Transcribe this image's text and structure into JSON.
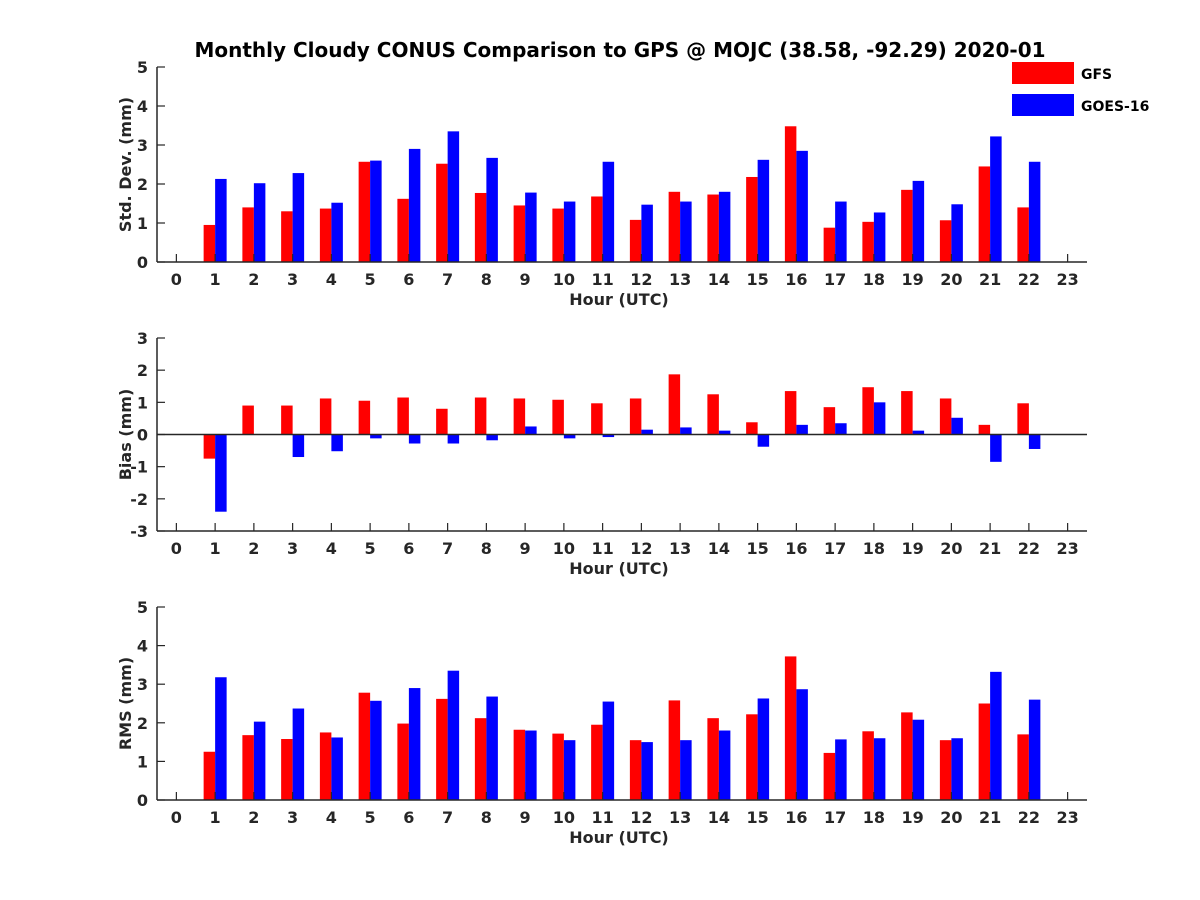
{
  "chart_data": {
    "type": "bar",
    "title": "Monthly Cloudy CONUS Comparison to GPS @ MOJC (38.58, -92.29) 2020-01",
    "legend": {
      "position": "top-right",
      "entries": [
        {
          "name": "GFS",
          "color": "#ff0000"
        },
        {
          "name": "GOES-16",
          "color": "#0000ff"
        }
      ]
    },
    "categories": [
      0,
      1,
      2,
      3,
      4,
      5,
      6,
      7,
      8,
      9,
      10,
      11,
      12,
      13,
      14,
      15,
      16,
      17,
      18,
      19,
      20,
      21,
      22,
      23
    ],
    "panels": [
      {
        "id": "std",
        "ylabel": "Std. Dev. (mm)",
        "xlabel": "Hour (UTC)",
        "ylim": [
          0,
          5
        ],
        "yticks": [
          0,
          1,
          2,
          3,
          4,
          5
        ],
        "series": [
          {
            "name": "GFS",
            "values": [
              null,
              0.95,
              1.4,
              1.3,
              1.37,
              2.57,
              1.62,
              2.52,
              1.77,
              1.45,
              1.37,
              1.68,
              1.08,
              1.8,
              1.73,
              2.18,
              3.48,
              0.88,
              1.03,
              1.85,
              1.07,
              2.45,
              1.4,
              null
            ]
          },
          {
            "name": "GOES-16",
            "values": [
              null,
              2.13,
              2.02,
              2.28,
              1.52,
              2.6,
              2.9,
              3.35,
              2.67,
              1.78,
              1.55,
              2.57,
              1.47,
              1.55,
              1.8,
              2.62,
              2.85,
              1.55,
              1.27,
              2.08,
              1.48,
              3.22,
              2.57,
              null
            ]
          }
        ]
      },
      {
        "id": "bias",
        "ylabel": "Bias (mm)",
        "xlabel": "Hour (UTC)",
        "ylim": [
          -3,
          3
        ],
        "yticks": [
          -3,
          -2,
          -1,
          0,
          1,
          2,
          3
        ],
        "series": [
          {
            "name": "GFS",
            "values": [
              null,
              -0.75,
              0.9,
              0.9,
              1.12,
              1.05,
              1.15,
              0.8,
              1.15,
              1.12,
              1.08,
              0.97,
              1.12,
              1.87,
              1.25,
              0.38,
              1.35,
              0.85,
              1.47,
              1.35,
              1.12,
              0.3,
              0.97,
              null
            ]
          },
          {
            "name": "GOES-16",
            "values": [
              null,
              -2.4,
              null,
              -0.7,
              -0.52,
              -0.12,
              -0.28,
              -0.28,
              -0.18,
              0.25,
              -0.12,
              -0.08,
              0.15,
              0.22,
              0.12,
              -0.38,
              0.3,
              0.35,
              1.0,
              0.12,
              0.52,
              -0.85,
              -0.45,
              null
            ]
          }
        ]
      },
      {
        "id": "rms",
        "ylabel": "RMS (mm)",
        "xlabel": "Hour (UTC)",
        "ylim": [
          0,
          5
        ],
        "yticks": [
          0,
          1,
          2,
          3,
          4,
          5
        ],
        "series": [
          {
            "name": "GFS",
            "values": [
              null,
              1.25,
              1.68,
              1.58,
              1.75,
              2.78,
              1.98,
              2.62,
              2.12,
              1.82,
              1.72,
              1.95,
              1.55,
              2.58,
              2.12,
              2.22,
              3.72,
              1.22,
              1.78,
              2.27,
              1.55,
              2.5,
              1.7,
              null
            ]
          },
          {
            "name": "GOES-16",
            "values": [
              null,
              3.18,
              2.03,
              2.37,
              1.62,
              2.57,
              2.9,
              3.35,
              2.68,
              1.8,
              1.55,
              2.55,
              1.5,
              1.55,
              1.8,
              2.63,
              2.87,
              1.57,
              1.6,
              2.08,
              1.6,
              3.32,
              2.6,
              null
            ]
          }
        ]
      }
    ]
  }
}
